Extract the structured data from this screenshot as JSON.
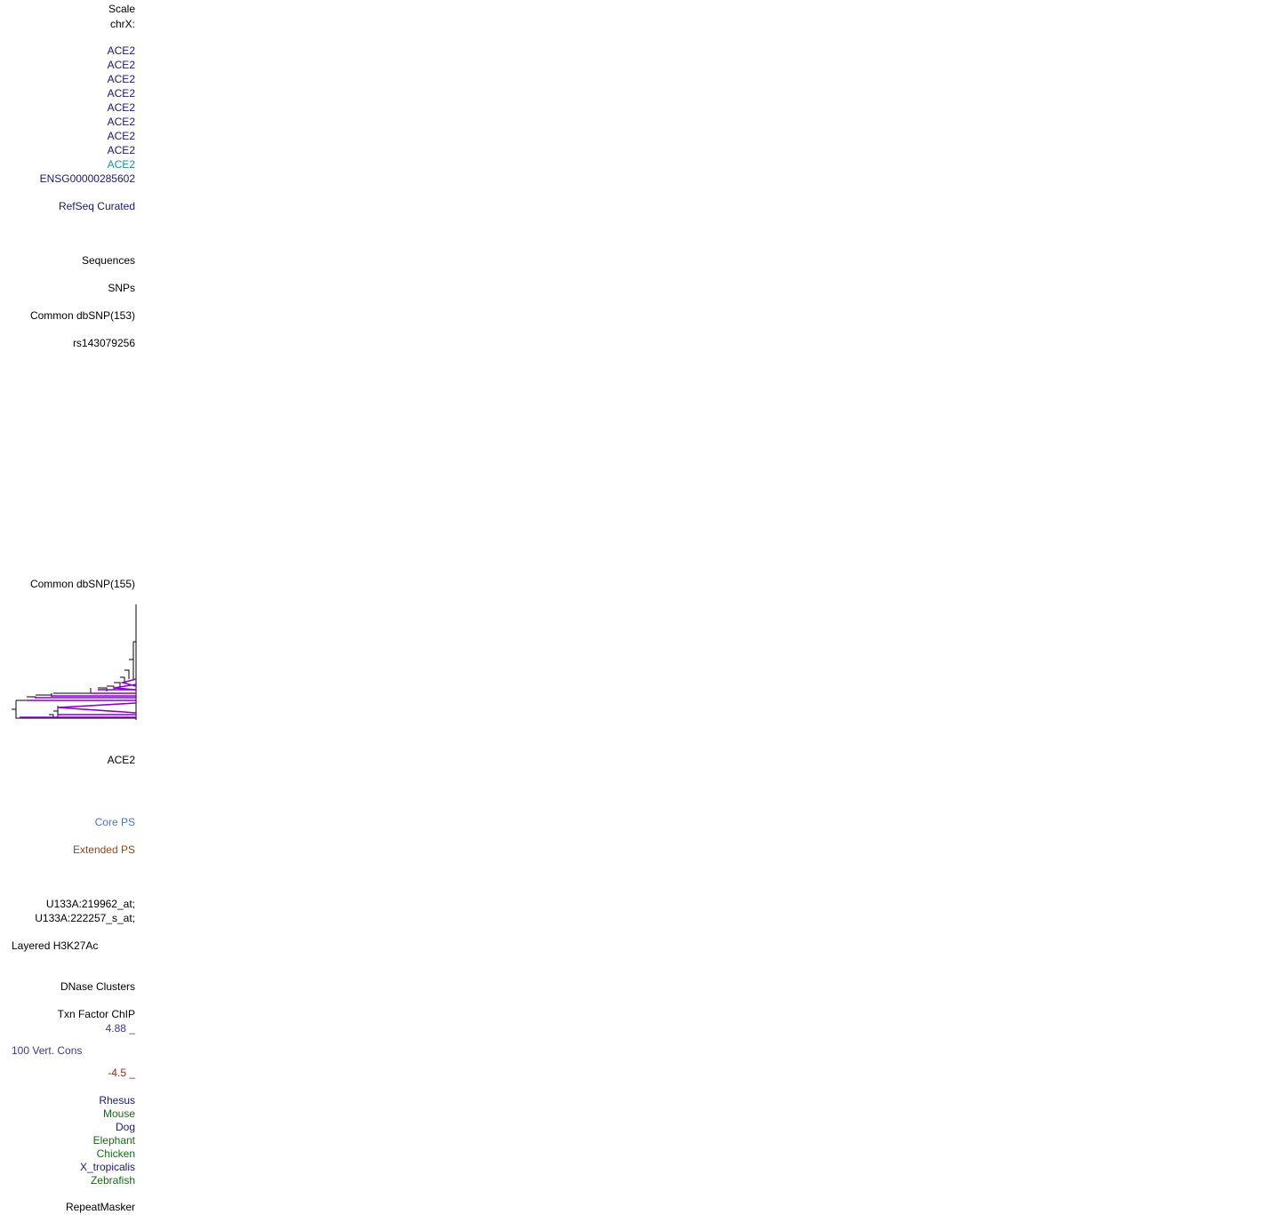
{
  "scale_label": "Scale",
  "chrom_label": "chrX:",
  "ace2_transcripts": [
    {
      "label": "ACE2",
      "color": "#1a1a66"
    },
    {
      "label": "ACE2",
      "color": "#1a1a66"
    },
    {
      "label": "ACE2",
      "color": "#1a1a66"
    },
    {
      "label": "ACE2",
      "color": "#1a1a66"
    },
    {
      "label": "ACE2",
      "color": "#1a1a66"
    },
    {
      "label": "ACE2",
      "color": "#1a1a66"
    },
    {
      "label": "ACE2",
      "color": "#1a1a66"
    },
    {
      "label": "ACE2",
      "color": "#1a1a66"
    },
    {
      "label": "ACE2",
      "color": "#1f8aa6"
    }
  ],
  "ensg_label": "ENSG00000285602",
  "refseq_label": "RefSeq Curated",
  "sequences_label": "Sequences",
  "snps_label": "SNPs",
  "dbsnp153_label": "Common dbSNP(153)",
  "rs_label": "rs143079256",
  "dbsnp155_label": "Common dbSNP(155)",
  "ace2_label": "ACE2",
  "core_ps_label": "Core PS",
  "extended_ps_label": "Extended PS",
  "u133a_1": "U133A:219962_at;",
  "u133a_2": "U133A:222257_s_at;",
  "h3k27ac_label": "Layered H3K27Ac",
  "dnase_label": "DNase Clusters",
  "txn_label": "Txn Factor ChIP",
  "cons_max": "4.88 _",
  "cons_label": "100 Vert. Cons",
  "cons_min": "-4.5 _",
  "species": [
    {
      "label": "Rhesus",
      "color": "#1a1a66"
    },
    {
      "label": "Mouse",
      "color": "#1a661a"
    },
    {
      "label": "Dog",
      "color": "#1a1a66"
    },
    {
      "label": "Elephant",
      "color": "#1a661a"
    },
    {
      "label": "Chicken",
      "color": "#1a661a"
    },
    {
      "label": "X_tropicalis",
      "color": "#1a1a66"
    },
    {
      "label": "Zebrafish",
      "color": "#1a661a"
    }
  ],
  "repeatmasker_label": "RepeatMasker",
  "colors": {
    "black": "#000000",
    "navy": "#1a1a66",
    "teal": "#1f8aa6",
    "core_ps": "#4a72c8",
    "extended_ps": "#8b4a1a",
    "cons_blue": "#3a3a8a",
    "cons_red": "#8b2a1a",
    "tree_purple": "#8a00c8"
  }
}
